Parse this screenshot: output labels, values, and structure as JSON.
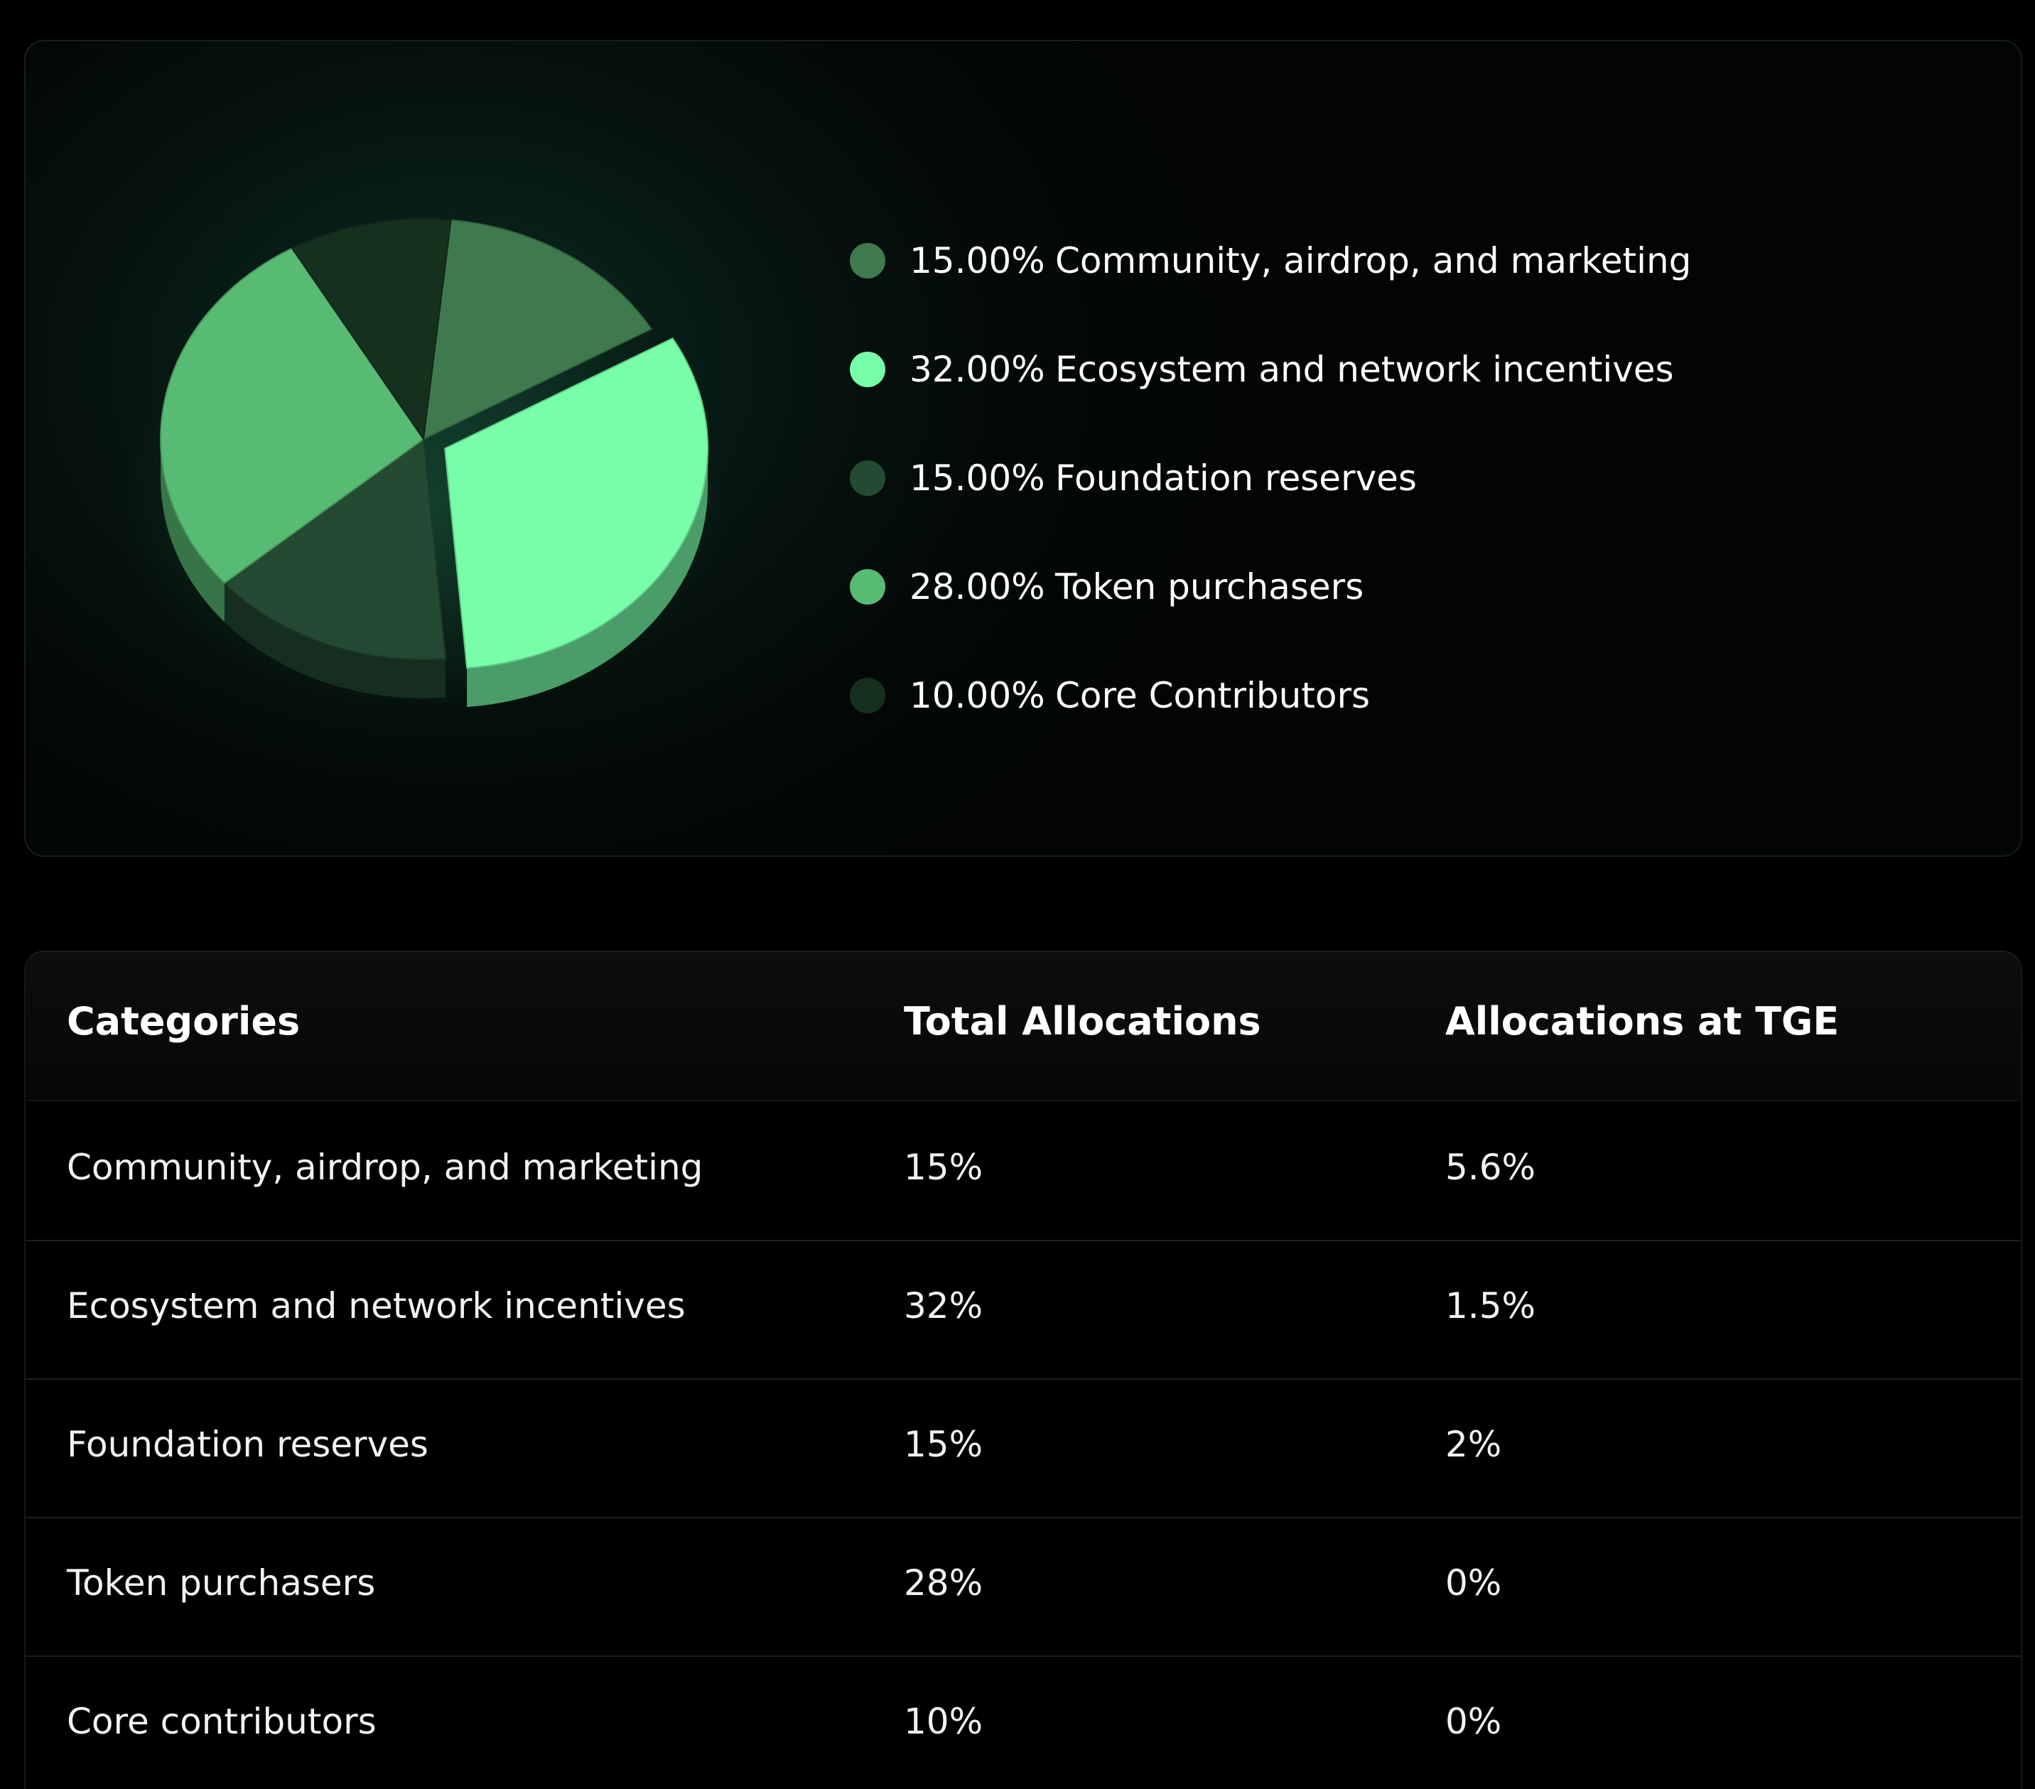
{
  "chart_data": {
    "type": "pie",
    "slices": [
      {
        "label": "Community, airdrop, and marketing",
        "value": 15.0,
        "display": "15.00%",
        "color": "#3f7a4e"
      },
      {
        "label": "Ecosystem and network incentives",
        "value": 32.0,
        "display": "32.00%",
        "color": "#78fda8"
      },
      {
        "label": "Foundation reserves",
        "value": 15.0,
        "display": "15.00%",
        "color": "#244a32"
      },
      {
        "label": "Token purchasers",
        "value": 28.0,
        "display": "28.00%",
        "color": "#58bb73"
      },
      {
        "label": "Core Contributors",
        "value": 10.0,
        "display": "10.00%",
        "color": "#16301f"
      }
    ]
  },
  "table": {
    "headers": [
      "Categories",
      "Total Allocations",
      "Allocations at TGE"
    ],
    "rows": [
      [
        "Community, airdrop, and marketing",
        "15%",
        "5.6%"
      ],
      [
        "Ecosystem and network incentives",
        "32%",
        "1.5%"
      ],
      [
        "Foundation reserves",
        "15%",
        "2%"
      ],
      [
        "Token purchasers",
        "28%",
        "0%"
      ],
      [
        "Core contributors",
        "10%",
        "0%"
      ]
    ]
  }
}
